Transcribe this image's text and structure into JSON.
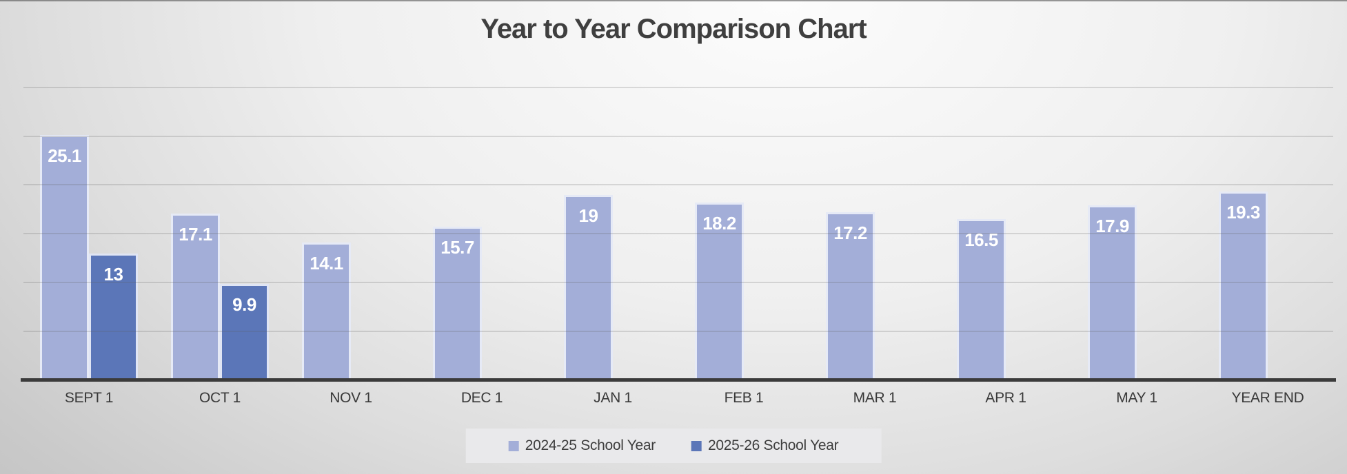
{
  "title": "Year to Year Comparison Chart",
  "chart_data": {
    "type": "bar",
    "title": "Year to Year Comparison Chart",
    "categories": [
      "SEPT 1",
      "OCT 1",
      "NOV 1",
      "DEC 1",
      "JAN 1",
      "FEB 1",
      "MAR 1",
      "APR 1",
      "MAY 1",
      "YEAR END"
    ],
    "series": [
      {
        "name": "2024-25 School Year",
        "color": "#a3aed8",
        "values": [
          25.1,
          17.1,
          14.1,
          15.7,
          19,
          18.2,
          17.2,
          16.5,
          17.9,
          19.3
        ]
      },
      {
        "name": "2025-26 School Year",
        "color": "#5b76b8",
        "values": [
          13,
          9.9,
          null,
          null,
          null,
          null,
          null,
          null,
          null,
          null
        ]
      }
    ],
    "xlabel": "",
    "ylabel": "",
    "ylim": [
      0,
      30
    ],
    "grid_step": 5,
    "grid_on": true,
    "y_tick_labels_visible": false,
    "data_labels": "inside-end, white bold",
    "legend_position": "bottom-center",
    "colors": {
      "baseline": "#3b3b3b",
      "title_text": "#3f3f3f",
      "legend_background": "#e9e9eb"
    }
  }
}
